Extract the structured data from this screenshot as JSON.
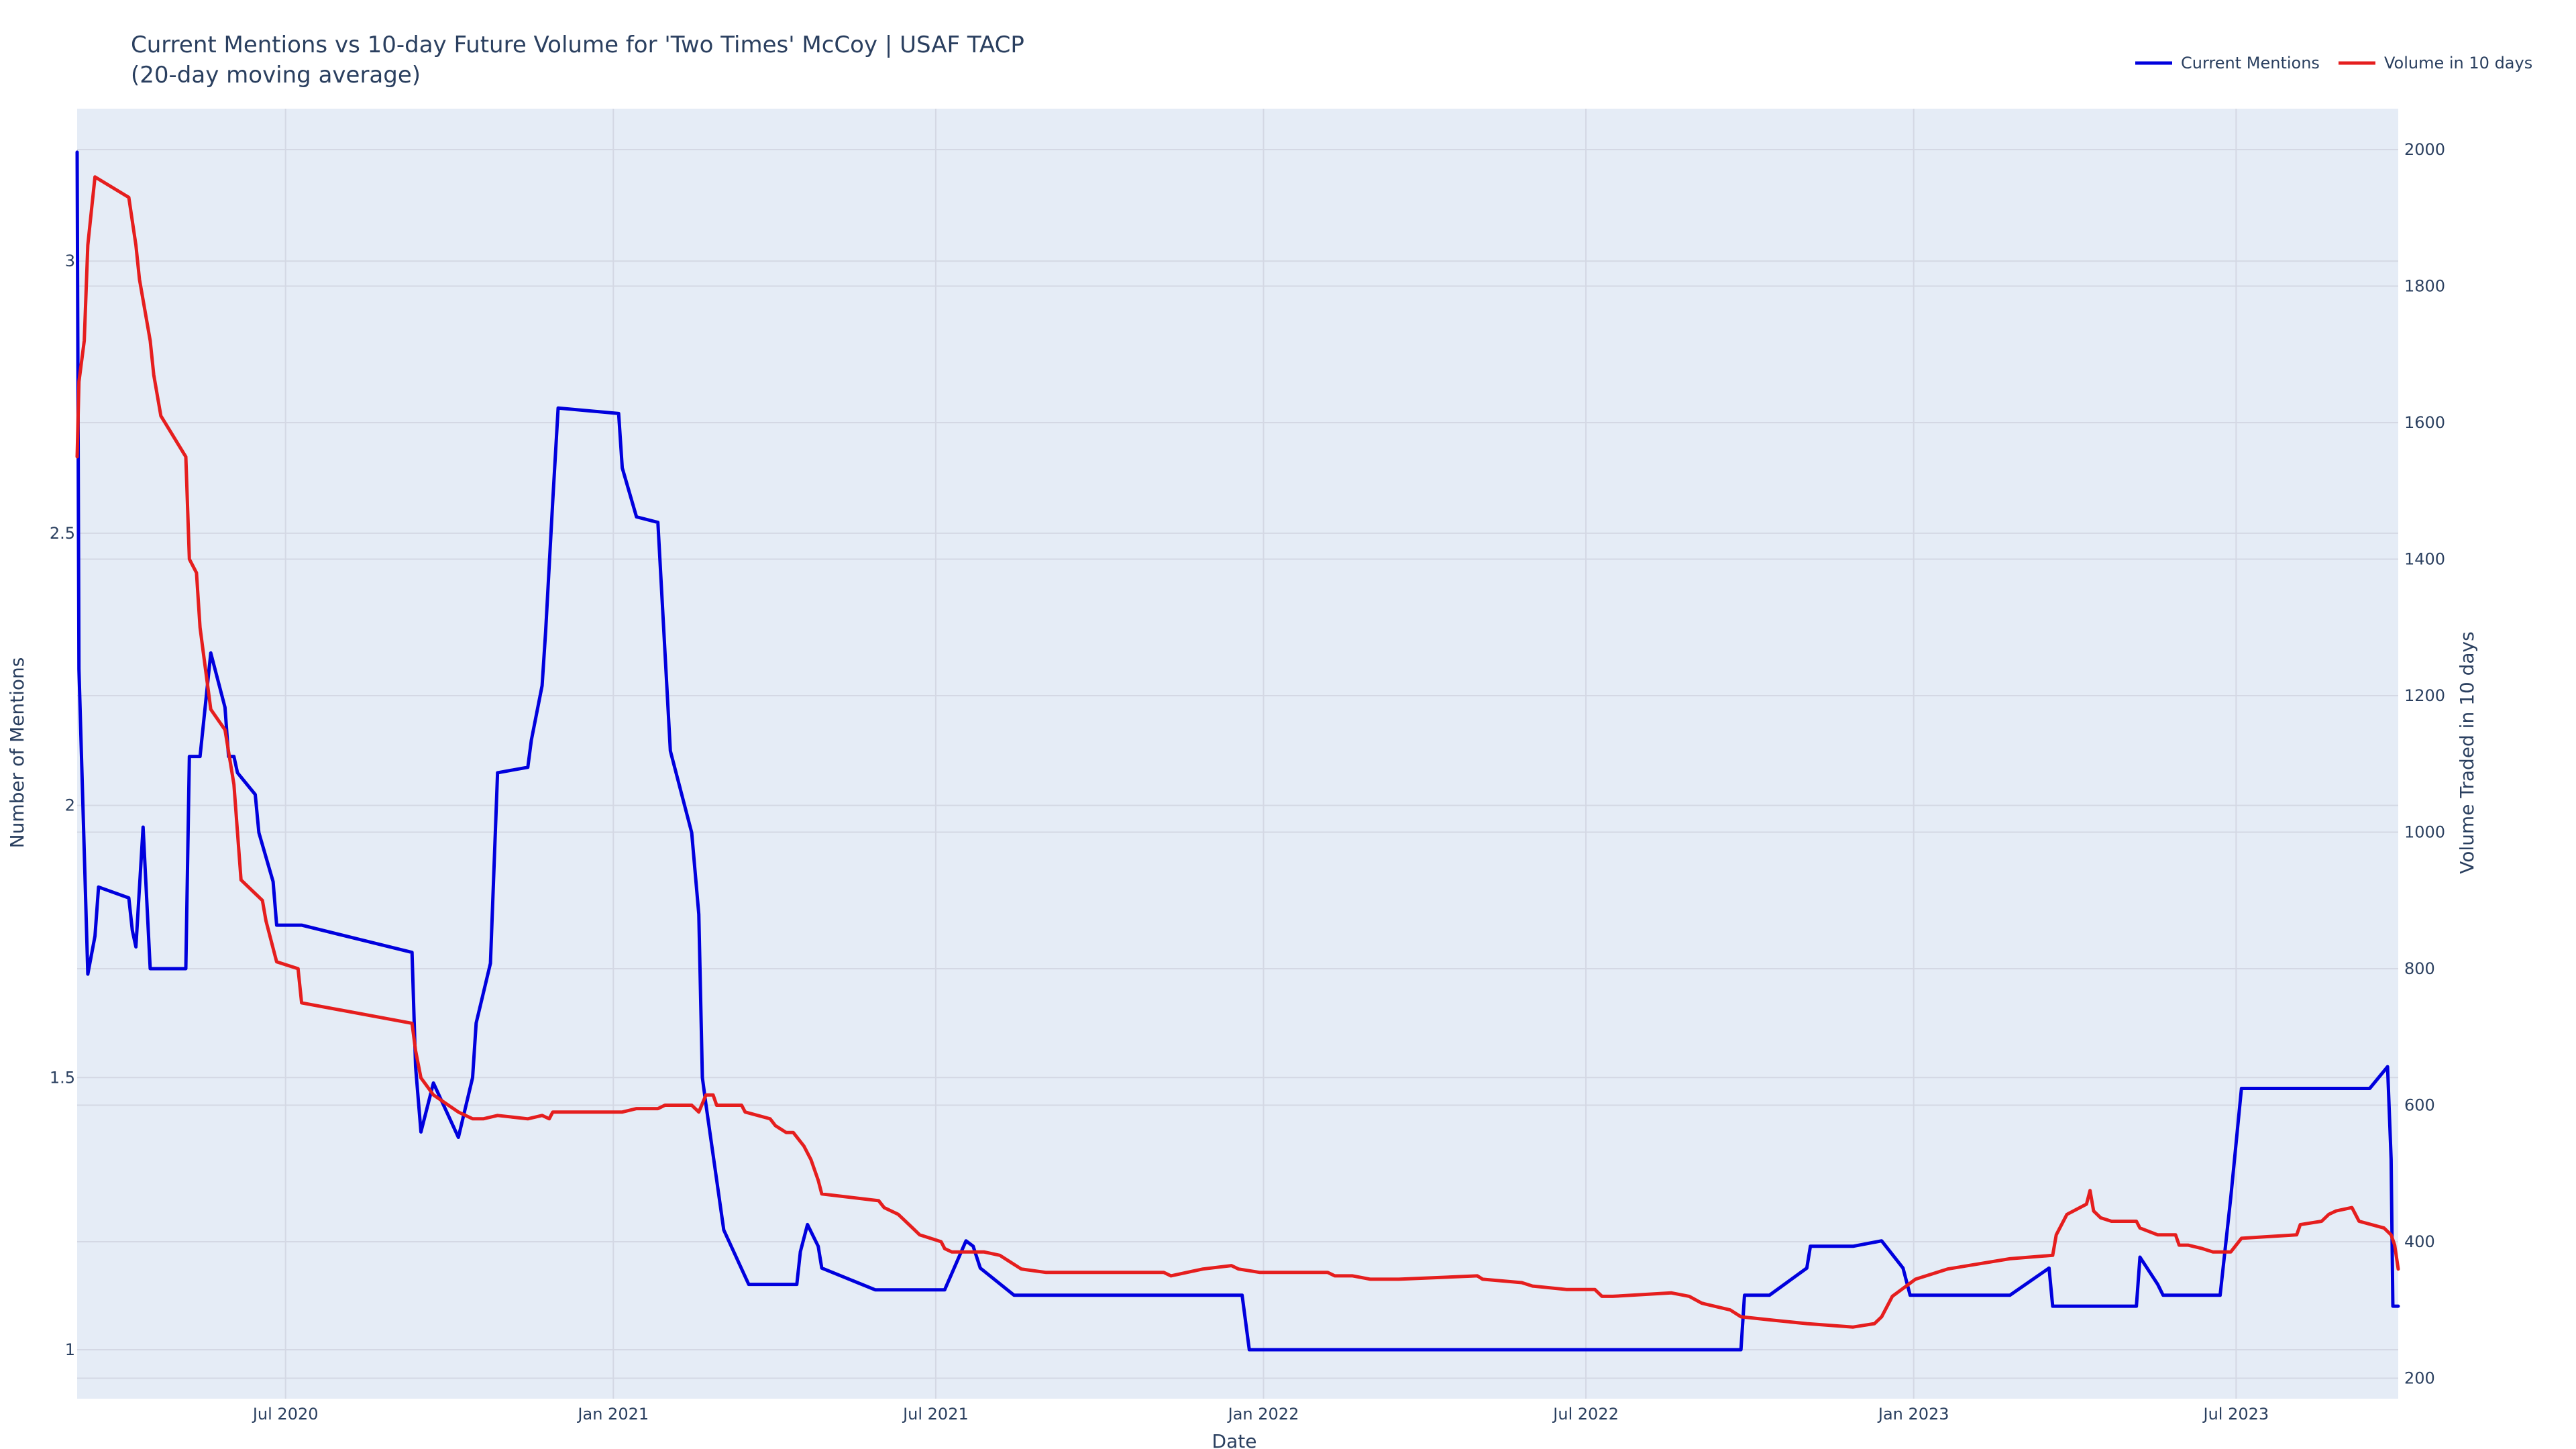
{
  "chart_data": {
    "type": "line",
    "title_line1": "Current Mentions vs 10-day Future Volume for 'Two Times' McCoy | USAF TACP",
    "title_line2": "(20-day moving average)",
    "xlabel": "Date",
    "ylabel_left": "Number of Mentions",
    "ylabel_right": "Volume Traded in 10 days",
    "x_range": [
      "2020-03-06",
      "2023-09-30"
    ],
    "y_left_range": [
      0.91,
      3.28
    ],
    "y_right_range": [
      170,
      2060
    ],
    "x_ticks": [
      {
        "date": "2020-07-01",
        "label": "Jul 2020"
      },
      {
        "date": "2021-01-01",
        "label": "Jan 2021"
      },
      {
        "date": "2021-07-01",
        "label": "Jul 2021"
      },
      {
        "date": "2022-01-01",
        "label": "Jan 2022"
      },
      {
        "date": "2022-07-01",
        "label": "Jul 2022"
      },
      {
        "date": "2023-01-01",
        "label": "Jan 2023"
      },
      {
        "date": "2023-07-01",
        "label": "Jul 2023"
      }
    ],
    "y_left_ticks": [
      {
        "value": 1,
        "label": "1"
      },
      {
        "value": 1.5,
        "label": "1.5"
      },
      {
        "value": 2,
        "label": "2"
      },
      {
        "value": 2.5,
        "label": "2.5"
      },
      {
        "value": 3,
        "label": "3"
      }
    ],
    "y_right_ticks": [
      {
        "value": 200,
        "label": "200"
      },
      {
        "value": 400,
        "label": "400"
      },
      {
        "value": 600,
        "label": "600"
      },
      {
        "value": 800,
        "label": "800"
      },
      {
        "value": 1000,
        "label": "1000"
      },
      {
        "value": 1200,
        "label": "1200"
      },
      {
        "value": 1400,
        "label": "1400"
      },
      {
        "value": 1600,
        "label": "1600"
      },
      {
        "value": 1800,
        "label": "1800"
      },
      {
        "value": 2000,
        "label": "2000"
      }
    ],
    "grid": true,
    "legend_placement": "top-right",
    "series": [
      {
        "name": "Current Mentions",
        "axis": "left",
        "color": "#0000dd",
        "points": [
          [
            "2020-03-06",
            3.2
          ],
          [
            "2020-03-07",
            2.25
          ],
          [
            "2020-03-12",
            1.69
          ],
          [
            "2020-03-16",
            1.76
          ],
          [
            "2020-03-18",
            1.85
          ],
          [
            "2020-04-04",
            1.83
          ],
          [
            "2020-04-06",
            1.77
          ],
          [
            "2020-04-08",
            1.74
          ],
          [
            "2020-04-12",
            1.96
          ],
          [
            "2020-04-14",
            1.83
          ],
          [
            "2020-04-16",
            1.7
          ],
          [
            "2020-05-06",
            1.7
          ],
          [
            "2020-05-08",
            2.09
          ],
          [
            "2020-05-14",
            2.09
          ],
          [
            "2020-05-20",
            2.28
          ],
          [
            "2020-05-28",
            2.18
          ],
          [
            "2020-05-30",
            2.09
          ],
          [
            "2020-06-02",
            2.09
          ],
          [
            "2020-06-04",
            2.06
          ],
          [
            "2020-06-14",
            2.02
          ],
          [
            "2020-06-16",
            1.95
          ],
          [
            "2020-06-24",
            1.86
          ],
          [
            "2020-06-26",
            1.78
          ],
          [
            "2020-07-10",
            1.78
          ],
          [
            "2020-09-10",
            1.73
          ],
          [
            "2020-09-12",
            1.52
          ],
          [
            "2020-09-15",
            1.4
          ],
          [
            "2020-09-22",
            1.49
          ],
          [
            "2020-10-06",
            1.39
          ],
          [
            "2020-10-14",
            1.5
          ],
          [
            "2020-10-16",
            1.6
          ],
          [
            "2020-10-24",
            1.71
          ],
          [
            "2020-10-28",
            2.06
          ],
          [
            "2020-11-14",
            2.07
          ],
          [
            "2020-11-16",
            2.12
          ],
          [
            "2020-11-22",
            2.22
          ],
          [
            "2020-11-24",
            2.32
          ],
          [
            "2020-11-28",
            2.56
          ],
          [
            "2020-12-01",
            2.73
          ],
          [
            "2021-01-04",
            2.72
          ],
          [
            "2021-01-06",
            2.62
          ],
          [
            "2021-01-14",
            2.53
          ],
          [
            "2021-01-26",
            2.52
          ],
          [
            "2021-02-02",
            2.1
          ],
          [
            "2021-02-14",
            1.95
          ],
          [
            "2021-02-18",
            1.8
          ],
          [
            "2021-02-20",
            1.5
          ],
          [
            "2021-02-22",
            1.45
          ],
          [
            "2021-03-04",
            1.22
          ],
          [
            "2021-03-18",
            1.12
          ],
          [
            "2021-04-14",
            1.12
          ],
          [
            "2021-04-16",
            1.18
          ],
          [
            "2021-04-20",
            1.23
          ],
          [
            "2021-04-26",
            1.19
          ],
          [
            "2021-04-28",
            1.15
          ],
          [
            "2021-05-28",
            1.11
          ],
          [
            "2021-07-06",
            1.11
          ],
          [
            "2021-07-18",
            1.2
          ],
          [
            "2021-07-22",
            1.19
          ],
          [
            "2021-07-26",
            1.15
          ],
          [
            "2021-08-14",
            1.1
          ],
          [
            "2021-12-20",
            1.1
          ],
          [
            "2021-12-24",
            1.0
          ],
          [
            "2022-09-26",
            1.0
          ],
          [
            "2022-09-28",
            1.1
          ],
          [
            "2022-10-12",
            1.1
          ],
          [
            "2022-11-02",
            1.15
          ],
          [
            "2022-11-04",
            1.19
          ],
          [
            "2022-11-28",
            1.19
          ],
          [
            "2022-12-14",
            1.2
          ],
          [
            "2022-12-26",
            1.15
          ],
          [
            "2022-12-30",
            1.1
          ],
          [
            "2023-02-24",
            1.1
          ],
          [
            "2023-03-18",
            1.15
          ],
          [
            "2023-03-20",
            1.08
          ],
          [
            "2023-05-06",
            1.08
          ],
          [
            "2023-05-08",
            1.17
          ],
          [
            "2023-05-18",
            1.12
          ],
          [
            "2023-05-21",
            1.1
          ],
          [
            "2023-06-22",
            1.1
          ],
          [
            "2023-06-28",
            1.28
          ],
          [
            "2023-07-04",
            1.48
          ],
          [
            "2023-09-14",
            1.48
          ],
          [
            "2023-09-24",
            1.52
          ],
          [
            "2023-09-26",
            1.35
          ],
          [
            "2023-09-27",
            1.08
          ],
          [
            "2023-09-30",
            1.08
          ]
        ]
      },
      {
        "name": "Volume in 10 days",
        "axis": "right",
        "color": "#e51e1e",
        "points": [
          [
            "2020-03-06",
            1550
          ],
          [
            "2020-03-07",
            1660
          ],
          [
            "2020-03-10",
            1720
          ],
          [
            "2020-03-12",
            1860
          ],
          [
            "2020-03-14",
            1910
          ],
          [
            "2020-03-16",
            1960
          ],
          [
            "2020-04-04",
            1930
          ],
          [
            "2020-04-08",
            1860
          ],
          [
            "2020-04-10",
            1810
          ],
          [
            "2020-04-14",
            1750
          ],
          [
            "2020-04-16",
            1720
          ],
          [
            "2020-04-18",
            1670
          ],
          [
            "2020-04-22",
            1610
          ],
          [
            "2020-05-06",
            1550
          ],
          [
            "2020-05-08",
            1400
          ],
          [
            "2020-05-12",
            1380
          ],
          [
            "2020-05-14",
            1300
          ],
          [
            "2020-05-16",
            1260
          ],
          [
            "2020-05-20",
            1180
          ],
          [
            "2020-05-28",
            1150
          ],
          [
            "2020-06-02",
            1070
          ],
          [
            "2020-06-06",
            930
          ],
          [
            "2020-06-18",
            900
          ],
          [
            "2020-06-20",
            870
          ],
          [
            "2020-06-24",
            830
          ],
          [
            "2020-06-26",
            810
          ],
          [
            "2020-07-08",
            800
          ],
          [
            "2020-07-10",
            750
          ],
          [
            "2020-09-10",
            720
          ],
          [
            "2020-09-12",
            680
          ],
          [
            "2020-09-15",
            640
          ],
          [
            "2020-09-22",
            615
          ],
          [
            "2020-10-06",
            590
          ],
          [
            "2020-10-14",
            580
          ],
          [
            "2020-10-20",
            580
          ],
          [
            "2020-10-28",
            585
          ],
          [
            "2020-11-14",
            580
          ],
          [
            "2020-11-22",
            585
          ],
          [
            "2020-11-26",
            580
          ],
          [
            "2020-11-28",
            590
          ],
          [
            "2021-01-04",
            590
          ],
          [
            "2021-01-06",
            590
          ],
          [
            "2021-01-14",
            595
          ],
          [
            "2021-01-26",
            595
          ],
          [
            "2021-01-30",
            600
          ],
          [
            "2021-02-14",
            600
          ],
          [
            "2021-02-18",
            590
          ],
          [
            "2021-02-22",
            615
          ],
          [
            "2021-02-26",
            615
          ],
          [
            "2021-02-28",
            600
          ],
          [
            "2021-03-14",
            600
          ],
          [
            "2021-03-16",
            590
          ],
          [
            "2021-03-30",
            580
          ],
          [
            "2021-04-02",
            570
          ],
          [
            "2021-04-08",
            560
          ],
          [
            "2021-04-12",
            560
          ],
          [
            "2021-04-18",
            540
          ],
          [
            "2021-04-22",
            520
          ],
          [
            "2021-04-26",
            490
          ],
          [
            "2021-04-28",
            470
          ],
          [
            "2021-05-30",
            460
          ],
          [
            "2021-06-02",
            450
          ],
          [
            "2021-06-10",
            440
          ],
          [
            "2021-06-18",
            420
          ],
          [
            "2021-06-22",
            410
          ],
          [
            "2021-07-04",
            400
          ],
          [
            "2021-07-06",
            390
          ],
          [
            "2021-07-10",
            385
          ],
          [
            "2021-07-28",
            385
          ],
          [
            "2021-08-06",
            380
          ],
          [
            "2021-08-12",
            370
          ],
          [
            "2021-08-18",
            360
          ],
          [
            "2021-09-01",
            355
          ],
          [
            "2021-11-06",
            355
          ],
          [
            "2021-11-10",
            350
          ],
          [
            "2021-11-28",
            360
          ],
          [
            "2021-12-14",
            365
          ],
          [
            "2021-12-18",
            360
          ],
          [
            "2021-12-30",
            355
          ],
          [
            "2022-02-06",
            355
          ],
          [
            "2022-02-10",
            350
          ],
          [
            "2022-02-20",
            350
          ],
          [
            "2022-03-02",
            345
          ],
          [
            "2022-03-18",
            345
          ],
          [
            "2022-05-01",
            350
          ],
          [
            "2022-05-04",
            345
          ],
          [
            "2022-05-26",
            340
          ],
          [
            "2022-06-01",
            335
          ],
          [
            "2022-06-20",
            330
          ],
          [
            "2022-07-06",
            330
          ],
          [
            "2022-07-10",
            320
          ],
          [
            "2022-07-16",
            320
          ],
          [
            "2022-08-18",
            325
          ],
          [
            "2022-08-28",
            320
          ],
          [
            "2022-09-04",
            310
          ],
          [
            "2022-09-20",
            300
          ],
          [
            "2022-09-26",
            290
          ],
          [
            "2022-10-14",
            285
          ],
          [
            "2022-11-02",
            280
          ],
          [
            "2022-11-28",
            275
          ],
          [
            "2022-12-10",
            280
          ],
          [
            "2022-12-14",
            290
          ],
          [
            "2022-12-18",
            310
          ],
          [
            "2022-12-20",
            320
          ],
          [
            "2023-01-02",
            345
          ],
          [
            "2023-01-20",
            360
          ],
          [
            "2023-02-24",
            375
          ],
          [
            "2023-03-20",
            380
          ],
          [
            "2023-03-22",
            410
          ],
          [
            "2023-03-28",
            440
          ],
          [
            "2023-04-08",
            455
          ],
          [
            "2023-04-10",
            475
          ],
          [
            "2023-04-12",
            445
          ],
          [
            "2023-04-16",
            435
          ],
          [
            "2023-04-22",
            430
          ],
          [
            "2023-05-06",
            430
          ],
          [
            "2023-05-08",
            420
          ],
          [
            "2023-05-18",
            410
          ],
          [
            "2023-05-28",
            410
          ],
          [
            "2023-05-30",
            395
          ],
          [
            "2023-06-04",
            395
          ],
          [
            "2023-06-12",
            390
          ],
          [
            "2023-06-18",
            385
          ],
          [
            "2023-06-28",
            385
          ],
          [
            "2023-07-04",
            405
          ],
          [
            "2023-08-04",
            410
          ],
          [
            "2023-08-06",
            425
          ],
          [
            "2023-08-18",
            430
          ],
          [
            "2023-08-22",
            440
          ],
          [
            "2023-08-26",
            445
          ],
          [
            "2023-09-04",
            450
          ],
          [
            "2023-09-06",
            440
          ],
          [
            "2023-09-08",
            430
          ],
          [
            "2023-09-22",
            420
          ],
          [
            "2023-09-26",
            410
          ],
          [
            "2023-09-28",
            395
          ],
          [
            "2023-09-30",
            360
          ]
        ]
      }
    ]
  }
}
